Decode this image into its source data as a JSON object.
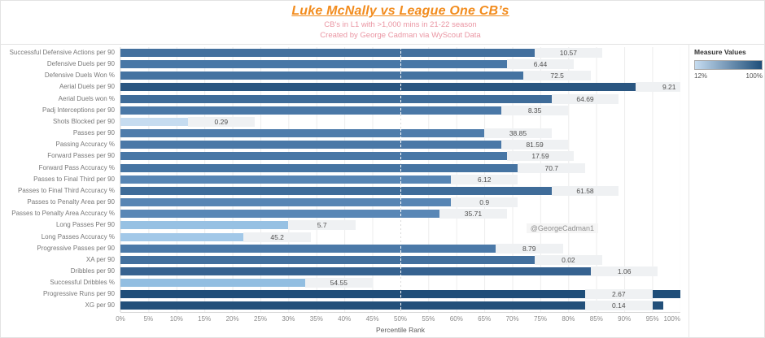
{
  "header": {
    "title": "Luke McNally vs League One CB’s",
    "subtitle_line1": "CB's in L1 with >1,000 mins in 21-22 season",
    "subtitle_line2": "Created by George Cadman via WyScout Data",
    "title_color": "#f28c1e",
    "subtitle_color": "#ea96a3"
  },
  "legend": {
    "title": "Measure Values",
    "min_label": "12%",
    "max_label": "100%",
    "min_color": "#c6dcf0",
    "max_color": "#1f4e79"
  },
  "annotation": {
    "text": "@GeorgeCadman1"
  },
  "axis": {
    "title": "Percentile Rank",
    "tick_labels": [
      "0%",
      "5%",
      "10%",
      "15%",
      "20%",
      "25%",
      "30%",
      "35%",
      "40%",
      "45%",
      "50%",
      "55%",
      "60%",
      "65%",
      "70%",
      "75%",
      "80%",
      "85%",
      "90%",
      "95%",
      "100%"
    ]
  },
  "chart_data": {
    "type": "bar",
    "orientation": "horizontal",
    "title": "Luke McNally vs League One CB’s",
    "xlabel": "Percentile Rank",
    "xlim": [
      0,
      100
    ],
    "grid": "vertical, every 5%",
    "reference_line_percent": 50,
    "legend_position": "top-right",
    "color_scale": {
      "label": "Measure Values",
      "min": 12,
      "max": 100,
      "min_color": "#c6dcf0",
      "max_color": "#1f4e79"
    },
    "rows": [
      {
        "label": "Successful Defensive Actions per 90",
        "value": "10.57",
        "percentile": 74,
        "color": "#43709e"
      },
      {
        "label": "Defensive Duels per 90",
        "value": "6.44",
        "percentile": 69,
        "color": "#4877a6"
      },
      {
        "label": "Defensive Duels Won %",
        "value": "72.5",
        "percentile": 72,
        "color": "#4573a1"
      },
      {
        "label": "Aerial Duels per 90",
        "value": "9.21",
        "percentile": 92,
        "color": "#2a5681"
      },
      {
        "label": "Aerial Duels won %",
        "value": "64.69",
        "percentile": 77,
        "color": "#3f6c99"
      },
      {
        "label": "Padj Interceptions per 90",
        "value": "8.35",
        "percentile": 68,
        "color": "#4a78a7"
      },
      {
        "label": "Shots Blocked per 90",
        "value": "0.29",
        "percentile": 12,
        "color": "#c6dcf0"
      },
      {
        "label": "Passes per 90",
        "value": "38.85",
        "percentile": 65,
        "color": "#4e7cab"
      },
      {
        "label": "Passing Accuracy %",
        "value": "81.59",
        "percentile": 68,
        "color": "#4a78a7"
      },
      {
        "label": "Forward Passes per 90",
        "value": "17.59",
        "percentile": 69,
        "color": "#4877a6"
      },
      {
        "label": "Forward Pass Accuracy %",
        "value": "70.7",
        "percentile": 71,
        "color": "#4674a2"
      },
      {
        "label": "Passes to Final Third per 90",
        "value": "6.12",
        "percentile": 59,
        "color": "#5785b4"
      },
      {
        "label": "Passes to Final Third Accuracy %",
        "value": "61.58",
        "percentile": 77,
        "color": "#3f6c99"
      },
      {
        "label": "Passes to Penalty Area per 90",
        "value": "0.9",
        "percentile": 59,
        "color": "#5785b4"
      },
      {
        "label": "Passes to Penalty Area Accuracy %",
        "value": "35.71",
        "percentile": 57,
        "color": "#5987b6"
      },
      {
        "label": "Long Passes Per 90",
        "value": "5.7",
        "percentile": 30,
        "color": "#97c1e3"
      },
      {
        "label": "Long Passes Accuracy %",
        "value": "45.2",
        "percentile": 22,
        "color": "#a2c8e8"
      },
      {
        "label": "Progressive Passes per 90",
        "value": "8.79",
        "percentile": 67,
        "color": "#4b79a8"
      },
      {
        "label": "XA per 90",
        "value": "0.02",
        "percentile": 74,
        "color": "#43709e"
      },
      {
        "label": "Dribbles per 90",
        "value": "1.06",
        "percentile": 84,
        "color": "#366290"
      },
      {
        "label": "Successful Dribbles %",
        "value": "54.55",
        "percentile": 33,
        "color": "#92bee1"
      },
      {
        "label": "Progressive Runs per 90",
        "value": "2.67",
        "percentile": 100,
        "color": "#1f4e79"
      },
      {
        "label": "XG per 90",
        "value": "0.14",
        "percentile": 97,
        "color": "#23507a"
      }
    ]
  }
}
